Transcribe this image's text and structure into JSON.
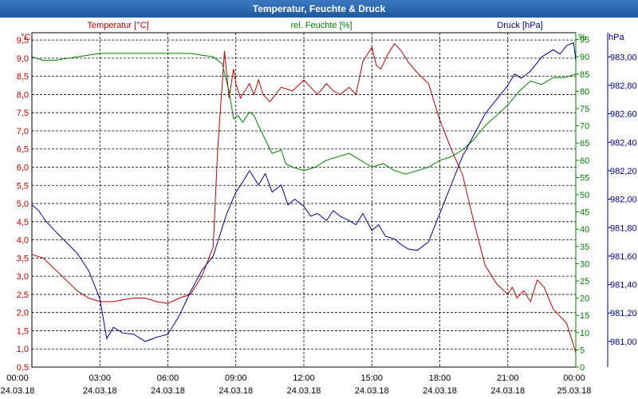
{
  "window": {
    "title": "Temperatur, Feuchte & Druck"
  },
  "chart_data": {
    "type": "line",
    "x_ticks": [
      {
        "time": "00:00",
        "date": "24.03.18"
      },
      {
        "time": "03:00",
        "date": "24.03.18"
      },
      {
        "time": "06:00",
        "date": "24.03.18"
      },
      {
        "time": "09:00",
        "date": "24.03.18"
      },
      {
        "time": "12:00",
        "date": "24.03.18"
      },
      {
        "time": "15:00",
        "date": "24.03.18"
      },
      {
        "time": "18:00",
        "date": "24.03.18"
      },
      {
        "time": "21:00",
        "date": "24.03.18"
      },
      {
        "time": "00:00",
        "date": "25.03.18"
      }
    ],
    "xlim": [
      0,
      24
    ],
    "axes": {
      "temperature": {
        "unit": "°C",
        "label": "Temperatur [°C]",
        "range": [
          0.5,
          9.7
        ],
        "ticks": [
          "0,5",
          "1,0",
          "1,5",
          "2,0",
          "2,5",
          "3,0",
          "3,5",
          "4,0",
          "4,5",
          "5,0",
          "5,5",
          "6,0",
          "6,5",
          "7,0",
          "7,5",
          "8,0",
          "8,5",
          "9,0",
          "9,5"
        ],
        "tick_values": [
          0.5,
          1.0,
          1.5,
          2.0,
          2.5,
          3.0,
          3.5,
          4.0,
          4.5,
          5.0,
          5.5,
          6.0,
          6.5,
          7.0,
          7.5,
          8.0,
          8.5,
          9.0,
          9.5
        ],
        "color": "#c00000"
      },
      "humidity": {
        "unit": "%",
        "label": "rel. Feuchte [%]",
        "range": [
          0,
          97
        ],
        "ticks": [
          "0",
          "5",
          "10",
          "15",
          "20",
          "25",
          "30",
          "35",
          "40",
          "45",
          "50",
          "55",
          "60",
          "65",
          "70",
          "75",
          "80",
          "85",
          "90",
          "95"
        ],
        "tick_values": [
          0,
          5,
          10,
          15,
          20,
          25,
          30,
          35,
          40,
          45,
          50,
          55,
          60,
          65,
          70,
          75,
          80,
          85,
          90,
          95
        ],
        "color": "#008000"
      },
      "pressure": {
        "unit": "hPa",
        "label": "Druck [hPa]",
        "range": [
          980.82,
          983.17
        ],
        "ticks": [
          "981,00",
          "981,20",
          "981,40",
          "981,60",
          "981,80",
          "982,00",
          "982,20",
          "982,40",
          "982,60",
          "982,80",
          "983,00"
        ],
        "tick_values": [
          981.0,
          981.2,
          981.4,
          981.6,
          981.8,
          982.0,
          982.2,
          982.4,
          982.6,
          982.8,
          983.0
        ],
        "color": "#000090"
      }
    },
    "grid": true,
    "series": [
      {
        "name": "Temperatur [°C]",
        "axis": "temperature",
        "x": [
          0,
          0.5,
          1,
          1.5,
          2,
          2.5,
          3,
          3.3,
          3.6,
          4,
          4.5,
          5,
          5.5,
          6,
          6.5,
          7,
          7.5,
          8,
          8.2,
          8.5,
          8.7,
          8.9,
          9.0,
          9.2,
          9.4,
          9.6,
          9.8,
          10,
          10.2,
          10.5,
          11,
          11.5,
          12,
          12.3,
          12.6,
          13,
          13.3,
          13.6,
          14,
          14.3,
          14.6,
          15,
          15.2,
          15.4,
          15.7,
          16,
          16.3,
          16.6,
          17,
          17.5,
          18,
          18.5,
          19,
          19.5,
          20,
          20.5,
          21,
          21.2,
          21.4,
          21.7,
          22,
          22.3,
          22.6,
          23,
          23.3,
          23.6,
          23.8,
          24
        ],
        "values": [
          3.6,
          3.5,
          3.2,
          2.9,
          2.6,
          2.4,
          2.3,
          2.3,
          2.3,
          2.35,
          2.4,
          2.4,
          2.3,
          2.25,
          2.4,
          2.5,
          3.0,
          3.8,
          6.5,
          9.2,
          7.9,
          8.7,
          8.3,
          7.9,
          8.1,
          8.3,
          8.0,
          8.4,
          8.0,
          7.8,
          8.2,
          8.1,
          8.4,
          8.2,
          8.0,
          8.3,
          8.1,
          8.0,
          8.2,
          8.0,
          8.9,
          9.3,
          8.8,
          8.7,
          9.1,
          9.4,
          9.2,
          8.9,
          8.6,
          8.3,
          7.3,
          6.5,
          5.8,
          4.5,
          3.3,
          2.8,
          2.5,
          2.7,
          2.4,
          2.6,
          2.3,
          2.9,
          2.7,
          2.1,
          1.9,
          1.7,
          1.3,
          0.9
        ]
      },
      {
        "name": "rel. Feuchte [%]",
        "axis": "humidity",
        "x": [
          0,
          0.5,
          1,
          2,
          3,
          4,
          5,
          6,
          6.5,
          7,
          7.5,
          8,
          8.4,
          8.7,
          8.9,
          9.1,
          9.3,
          9.6,
          9.8,
          10,
          10.3,
          10.6,
          11,
          11.2,
          11.5,
          12,
          12.5,
          13,
          13.5,
          14,
          14.5,
          15,
          15.5,
          16,
          16.5,
          17,
          17.5,
          18,
          18.5,
          19,
          19.5,
          20,
          20.5,
          21,
          21.5,
          22,
          22.5,
          23,
          23.5,
          24
        ],
        "values": [
          90,
          89,
          89,
          90,
          91,
          91,
          91,
          91,
          91,
          91,
          90.5,
          90,
          88,
          80,
          72,
          73,
          71,
          74,
          73,
          70,
          66,
          62,
          63,
          59,
          58,
          57,
          58,
          60,
          61,
          62,
          60,
          58,
          59,
          57,
          56,
          57,
          58,
          60,
          61,
          63,
          66,
          70,
          73,
          76,
          80,
          83,
          82,
          84,
          84,
          85
        ]
      },
      {
        "name": "Druck [hPa]",
        "axis": "pressure",
        "x": [
          0,
          0.3,
          0.6,
          1,
          1.5,
          2,
          2.5,
          3,
          3.3,
          3.6,
          4,
          4.5,
          5,
          5.5,
          6,
          6.5,
          7,
          7.5,
          8,
          8.3,
          8.6,
          9,
          9.3,
          9.6,
          10,
          10.3,
          10.6,
          11,
          11.3,
          11.6,
          12,
          12.3,
          12.6,
          13,
          13.3,
          13.6,
          14,
          14.3,
          14.6,
          15,
          15.3,
          15.6,
          16,
          16.3,
          16.6,
          17,
          17.5,
          18,
          18.5,
          19,
          19.5,
          20,
          20.5,
          21,
          21.3,
          21.6,
          22,
          22.5,
          23,
          23.3,
          23.6,
          23.9,
          24
        ],
        "values": [
          981.96,
          981.92,
          981.85,
          981.78,
          981.7,
          981.62,
          981.5,
          981.3,
          981.02,
          981.1,
          981.06,
          981.05,
          981.0,
          981.03,
          981.05,
          981.18,
          981.35,
          981.5,
          981.6,
          981.75,
          981.9,
          982.05,
          982.12,
          982.2,
          982.1,
          982.18,
          982.05,
          982.1,
          981.96,
          982.0,
          981.95,
          981.88,
          981.9,
          981.85,
          981.92,
          981.88,
          981.85,
          981.82,
          981.9,
          981.78,
          981.82,
          981.74,
          981.72,
          981.68,
          981.65,
          981.64,
          981.7,
          981.9,
          982.1,
          982.3,
          982.45,
          982.6,
          982.7,
          982.8,
          982.88,
          982.85,
          982.9,
          983.0,
          983.05,
          983.02,
          983.08,
          983.1,
          982.98
        ]
      }
    ]
  }
}
